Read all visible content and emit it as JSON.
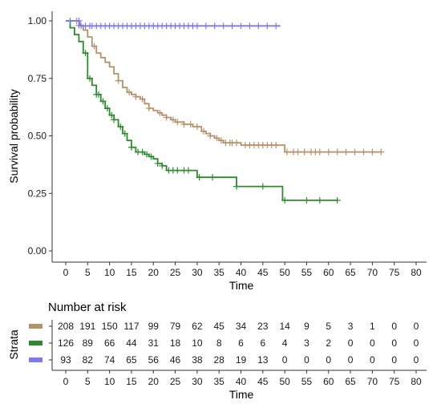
{
  "chart_data": [
    {
      "type": "line",
      "subtype": "kaplan-meier survival curve",
      "title": "",
      "xlabel": "Time",
      "ylabel": "Survival probability",
      "xlim": [
        0,
        80
      ],
      "ylim": [
        0,
        1
      ],
      "x_ticks": [
        "0",
        "5",
        "10",
        "15",
        "20",
        "25",
        "30",
        "35",
        "40",
        "45",
        "50",
        "55",
        "60",
        "65",
        "70",
        "75",
        "80"
      ],
      "y_ticks": [
        "0.00",
        "0.25",
        "0.50",
        "0.75",
        "1.00"
      ],
      "grid": false,
      "legend": "none",
      "series": [
        {
          "color": "#b5916a",
          "x": [
            0,
            2,
            3,
            4,
            5,
            6,
            7,
            8,
            9,
            10,
            11,
            12,
            13,
            14,
            15,
            16,
            17,
            18,
            19,
            20,
            21,
            22,
            23,
            24,
            25,
            26,
            27,
            28,
            29,
            30,
            31,
            32,
            33,
            34,
            35,
            36,
            37,
            38,
            39,
            40,
            45,
            50,
            55,
            60,
            65,
            70,
            72
          ],
          "y": [
            1.0,
            1.0,
            0.98,
            0.96,
            0.93,
            0.89,
            0.86,
            0.84,
            0.82,
            0.8,
            0.77,
            0.74,
            0.71,
            0.69,
            0.68,
            0.67,
            0.66,
            0.64,
            0.62,
            0.61,
            0.6,
            0.59,
            0.58,
            0.57,
            0.56,
            0.56,
            0.55,
            0.55,
            0.54,
            0.54,
            0.52,
            0.51,
            0.5,
            0.49,
            0.48,
            0.47,
            0.47,
            0.47,
            0.47,
            0.46,
            0.46,
            0.43,
            0.43,
            0.43,
            0.43,
            0.43,
            0.43
          ],
          "censor_x": [
            2.5,
            3,
            6.5,
            12,
            14.5,
            16,
            17.5,
            19,
            21.5,
            23,
            24.5,
            25.5,
            27,
            28.5,
            30,
            31.5,
            33,
            34.5,
            35.5,
            36.5,
            37.5,
            38,
            39,
            41,
            42,
            43,
            44,
            45,
            46,
            47,
            48,
            50.5,
            52,
            53,
            54.5,
            56,
            57,
            58,
            60,
            62,
            64,
            66,
            68,
            70,
            72
          ]
        },
        {
          "color": "#2d8a2d",
          "x": [
            0,
            1,
            2,
            3,
            4,
            5,
            6,
            7,
            8,
            9,
            10,
            11,
            12,
            13,
            14,
            15,
            16,
            17,
            18,
            19,
            20,
            21,
            22,
            23,
            25,
            30,
            39,
            49.5,
            62
          ],
          "y": [
            1.0,
            0.97,
            0.94,
            0.91,
            0.86,
            0.75,
            0.72,
            0.68,
            0.65,
            0.62,
            0.59,
            0.57,
            0.54,
            0.51,
            0.48,
            0.45,
            0.43,
            0.43,
            0.42,
            0.41,
            0.4,
            0.38,
            0.37,
            0.35,
            0.35,
            0.32,
            0.28,
            0.22,
            0.22
          ],
          "censor_x": [
            4.5,
            5.5,
            7,
            7.5,
            8.5,
            9.5,
            10.5,
            11,
            12.5,
            13.5,
            15,
            16.5,
            17.5,
            18.5,
            19.5,
            21,
            22,
            23.5,
            24.5,
            25.5,
            27,
            28,
            30.5,
            33.5,
            39,
            45,
            50,
            55,
            58,
            62
          ]
        },
        {
          "color": "#7b7bef",
          "x": [
            0,
            2.5,
            3.2,
            49
          ],
          "y": [
            1.0,
            1.0,
            0.978,
            0.978
          ],
          "censor_x": [
            1,
            3,
            3.5,
            4.5,
            5.5,
            6,
            7,
            8,
            9,
            10,
            11,
            12,
            13,
            14,
            15,
            16,
            17,
            18,
            19,
            20,
            21,
            22,
            23,
            24,
            25,
            26,
            27,
            28,
            29,
            30,
            32,
            34,
            36,
            38,
            40,
            42,
            44,
            46,
            48
          ]
        }
      ]
    },
    {
      "type": "table",
      "title": "Number at risk",
      "ylabel": "Strata",
      "xlabel": "Time",
      "columns": [
        "0",
        "5",
        "10",
        "15",
        "20",
        "25",
        "30",
        "35",
        "40",
        "45",
        "50",
        "55",
        "60",
        "65",
        "70",
        "75",
        "80"
      ],
      "rows": [
        {
          "color": "#b5916a",
          "values": [
            "208",
            "191",
            "150",
            "117",
            "99",
            "79",
            "62",
            "45",
            "34",
            "23",
            "14",
            "9",
            "5",
            "3",
            "1",
            "0",
            "0"
          ]
        },
        {
          "color": "#2d8a2d",
          "values": [
            "126",
            "89",
            "66",
            "44",
            "31",
            "18",
            "10",
            "8",
            "6",
            "6",
            "4",
            "3",
            "2",
            "0",
            "0",
            "0",
            "0"
          ]
        },
        {
          "color": "#7b7bef",
          "values": [
            "93",
            "82",
            "74",
            "65",
            "56",
            "46",
            "38",
            "28",
            "19",
            "13",
            "0",
            "0",
            "0",
            "0",
            "0",
            "0",
            "0"
          ]
        }
      ]
    }
  ]
}
